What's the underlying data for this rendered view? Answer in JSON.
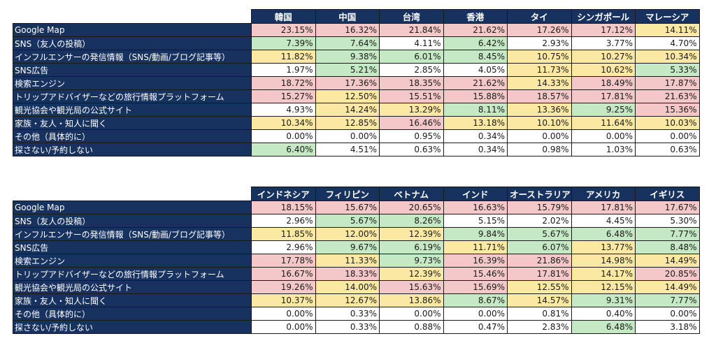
{
  "colors": {
    "header_bg": "#17325f",
    "pink": "#f4c7c9",
    "green": "#c5e8c5",
    "yellow": "#fbe9a3",
    "white": "#ffffff"
  },
  "rows": [
    "Google Map",
    "SNS（友人の投稿）",
    "インフルエンサーの発信情報（SNS/動画/ブログ記事等）",
    "SNS広告",
    "検索エンジン",
    "トリップアドバイザーなどの旅行情報プラットフォーム",
    "観光協会や観光局の公式サイト",
    "家族・友人・知人に聞く",
    "その他（具体的に）",
    "探さない/予約しない"
  ],
  "tables": [
    {
      "columns": [
        "韓国",
        "中国",
        "台湾",
        "香港",
        "タイ",
        "シンガポール",
        "マレーシア"
      ],
      "values": [
        [
          "23.15%",
          "16.32%",
          "21.84%",
          "21.62%",
          "17.26%",
          "17.12%",
          "14.11%"
        ],
        [
          "7.39%",
          "7.64%",
          "4.11%",
          "6.42%",
          "2.93%",
          "3.77%",
          "4.70%"
        ],
        [
          "11.82%",
          "9.38%",
          "6.01%",
          "8.45%",
          "10.75%",
          "10.27%",
          "10.34%"
        ],
        [
          "1.97%",
          "5.21%",
          "2.85%",
          "4.05%",
          "11.73%",
          "10.62%",
          "5.33%"
        ],
        [
          "18.72%",
          "17.36%",
          "18.35%",
          "21.62%",
          "14.33%",
          "18.49%",
          "17.87%"
        ],
        [
          "15.27%",
          "12.50%",
          "15.51%",
          "15.88%",
          "18.57%",
          "17.81%",
          "21.63%"
        ],
        [
          "4.93%",
          "14.24%",
          "13.29%",
          "8.11%",
          "13.36%",
          "9.25%",
          "15.36%"
        ],
        [
          "10.34%",
          "12.85%",
          "16.46%",
          "13.18%",
          "10.10%",
          "11.64%",
          "10.03%"
        ],
        [
          "0.00%",
          "0.00%",
          "0.95%",
          "0.34%",
          "0.00%",
          "0.00%",
          "0.00%"
        ],
        [
          "6.40%",
          "4.51%",
          "0.63%",
          "0.34%",
          "0.98%",
          "1.03%",
          "0.63%"
        ]
      ],
      "cell_colors": [
        [
          "pink",
          "pink",
          "pink",
          "pink",
          "pink",
          "pink",
          "yellow"
        ],
        [
          "green",
          "green",
          "white",
          "green",
          "white",
          "white",
          "white"
        ],
        [
          "yellow",
          "green",
          "green",
          "green",
          "yellow",
          "yellow",
          "yellow"
        ],
        [
          "white",
          "green",
          "white",
          "white",
          "yellow",
          "yellow",
          "green"
        ],
        [
          "pink",
          "pink",
          "pink",
          "pink",
          "yellow",
          "pink",
          "pink"
        ],
        [
          "pink",
          "yellow",
          "pink",
          "pink",
          "pink",
          "pink",
          "pink"
        ],
        [
          "white",
          "yellow",
          "yellow",
          "green",
          "yellow",
          "green",
          "pink"
        ],
        [
          "yellow",
          "yellow",
          "pink",
          "yellow",
          "yellow",
          "yellow",
          "yellow"
        ],
        [
          "white",
          "white",
          "white",
          "white",
          "white",
          "white",
          "white"
        ],
        [
          "green",
          "white",
          "white",
          "white",
          "white",
          "white",
          "white"
        ]
      ]
    },
    {
      "columns": [
        "インドネシア",
        "フィリピン",
        "ベトナム",
        "インド",
        "オーストラリア",
        "アメリカ",
        "イギリス"
      ],
      "values": [
        [
          "18.15%",
          "15.67%",
          "20.65%",
          "16.63%",
          "15.79%",
          "17.81%",
          "17.67%"
        ],
        [
          "2.96%",
          "5.67%",
          "8.26%",
          "5.15%",
          "2.02%",
          "4.45%",
          "5.30%"
        ],
        [
          "11.85%",
          "12.00%",
          "12.39%",
          "9.84%",
          "5.67%",
          "6.48%",
          "7.77%"
        ],
        [
          "2.96%",
          "9.67%",
          "6.19%",
          "11.71%",
          "6.07%",
          "13.77%",
          "8.48%"
        ],
        [
          "17.78%",
          "11.33%",
          "9.73%",
          "16.39%",
          "21.86%",
          "14.98%",
          "14.49%"
        ],
        [
          "16.67%",
          "18.33%",
          "12.39%",
          "15.46%",
          "17.81%",
          "14.17%",
          "20.85%"
        ],
        [
          "19.26%",
          "14.00%",
          "15.63%",
          "15.69%",
          "12.55%",
          "12.15%",
          "14.49%"
        ],
        [
          "10.37%",
          "12.67%",
          "13.86%",
          "8.67%",
          "14.57%",
          "9.31%",
          "7.77%"
        ],
        [
          "0.00%",
          "0.33%",
          "0.00%",
          "0.00%",
          "0.81%",
          "0.40%",
          "0.00%"
        ],
        [
          "0.00%",
          "0.33%",
          "0.88%",
          "0.47%",
          "2.83%",
          "6.48%",
          "3.18%"
        ]
      ],
      "cell_colors": [
        [
          "pink",
          "pink",
          "pink",
          "pink",
          "pink",
          "pink",
          "pink"
        ],
        [
          "white",
          "green",
          "green",
          "white",
          "white",
          "white",
          "white"
        ],
        [
          "yellow",
          "yellow",
          "yellow",
          "green",
          "green",
          "green",
          "green"
        ],
        [
          "white",
          "green",
          "green",
          "yellow",
          "green",
          "yellow",
          "green"
        ],
        [
          "pink",
          "yellow",
          "green",
          "pink",
          "pink",
          "yellow",
          "yellow"
        ],
        [
          "pink",
          "pink",
          "yellow",
          "pink",
          "pink",
          "yellow",
          "pink"
        ],
        [
          "pink",
          "yellow",
          "pink",
          "pink",
          "yellow",
          "yellow",
          "yellow"
        ],
        [
          "yellow",
          "yellow",
          "yellow",
          "green",
          "yellow",
          "green",
          "green"
        ],
        [
          "white",
          "white",
          "white",
          "white",
          "white",
          "white",
          "white"
        ],
        [
          "white",
          "white",
          "white",
          "white",
          "white",
          "green",
          "white"
        ]
      ]
    }
  ]
}
